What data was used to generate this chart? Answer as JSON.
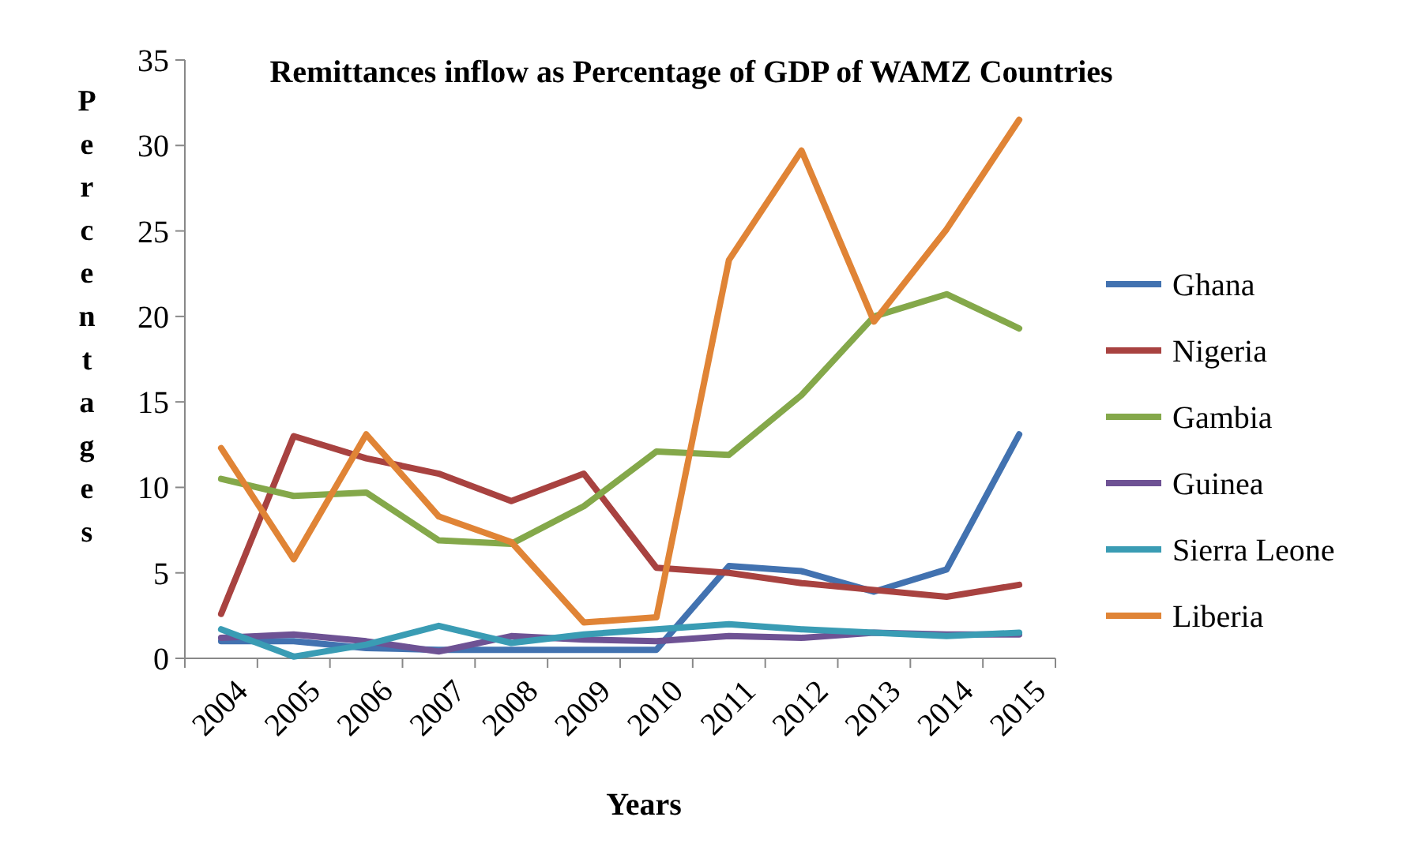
{
  "chart_data": {
    "type": "line",
    "title": "Remittances inflow as Percentage of GDP of WAMZ Countries",
    "xlabel": "Years",
    "ylabel": "Percentages",
    "categories": [
      "2004",
      "2005",
      "2006",
      "2007",
      "2008",
      "2009",
      "2010",
      "2011",
      "2012",
      "2013",
      "2014",
      "2015"
    ],
    "series": [
      {
        "name": "Ghana",
        "color": "#4272b0",
        "values": [
          1.0,
          1.0,
          0.6,
          0.5,
          0.5,
          0.5,
          0.5,
          5.4,
          5.1,
          3.9,
          5.2,
          13.1
        ]
      },
      {
        "name": "Nigeria",
        "color": "#a84240",
        "values": [
          2.6,
          13.0,
          11.7,
          10.8,
          9.2,
          10.8,
          5.3,
          5.0,
          4.4,
          4.0,
          3.6,
          4.3
        ]
      },
      {
        "name": "Gambia",
        "color": "#84a84a",
        "values": [
          10.5,
          9.5,
          9.7,
          6.9,
          6.7,
          8.9,
          12.1,
          11.9,
          15.4,
          20.0,
          21.3,
          19.3
        ]
      },
      {
        "name": "Guinea",
        "color": "#6e5294",
        "values": [
          1.2,
          1.4,
          1.0,
          0.4,
          1.3,
          1.1,
          1.0,
          1.3,
          1.2,
          1.5,
          1.4,
          1.4
        ]
      },
      {
        "name": "Sierra Leone",
        "color": "#3a9cb4",
        "values": [
          1.7,
          0.1,
          0.8,
          1.9,
          0.9,
          1.4,
          1.7,
          2.0,
          1.7,
          1.5,
          1.3,
          1.5
        ]
      },
      {
        "name": "Liberia",
        "color": "#e08436",
        "values": [
          12.3,
          5.8,
          13.1,
          8.3,
          6.8,
          2.1,
          2.4,
          23.3,
          29.7,
          19.7,
          25.1,
          31.5
        ]
      }
    ],
    "ylim": [
      0,
      35
    ],
    "yticks": [
      0,
      5,
      10,
      15,
      20,
      25,
      30,
      35
    ],
    "grid": false,
    "legend": "right",
    "marker": "none",
    "line_style": "solid"
  }
}
